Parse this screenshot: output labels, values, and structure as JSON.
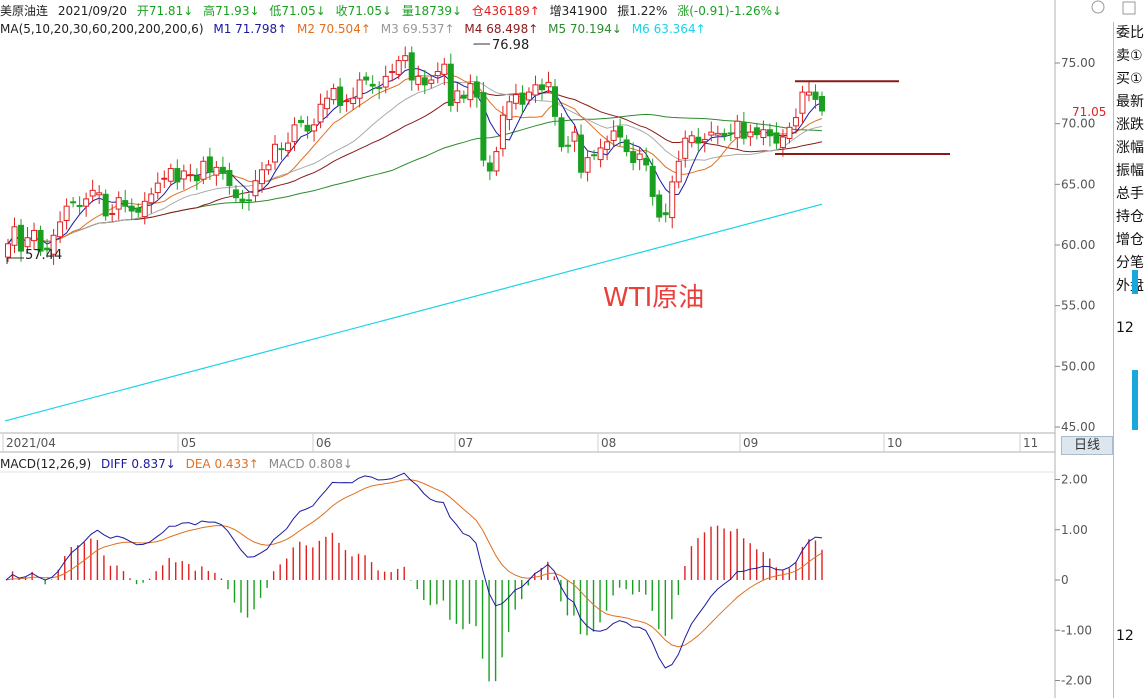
{
  "header": {
    "symbol": "美原油连",
    "date": "2021/09/20",
    "open": "开71.81↓",
    "high": "高71.93↓",
    "low": "低71.05↓",
    "close": "收71.05↓",
    "volume": "量18739↓",
    "open_interest": "仓436189↑",
    "increase": "增341900",
    "amplitude": "振1.22%",
    "change": "涨(-0.91)-1.26%↓"
  },
  "ma_line": {
    "label": "MA(5,10,20,30,60,200,200,200,6)",
    "items": [
      {
        "text": "M1 71.798↑",
        "color": "#1a1aa0"
      },
      {
        "text": "M2 70.504↑",
        "color": "#e07020"
      },
      {
        "text": "M3 69.537↑",
        "color": "#999999"
      },
      {
        "text": "M4 68.498↑",
        "color": "#8b1a1a"
      },
      {
        "text": "M5 70.194↓",
        "color": "#2e8b2e"
      },
      {
        "text": "M6 63.364↑",
        "color": "#19d4e6"
      }
    ]
  },
  "macd_line": {
    "label": "MACD(12,26,9)",
    "items": [
      {
        "text": "DIFF 0.837↓",
        "color": "#1a1aa0"
      },
      {
        "text": "DEA 0.433↑",
        "color": "#e07020"
      },
      {
        "text": "MACD 0.808↓",
        "color": "#888888"
      }
    ]
  },
  "annotation": "WTI原油",
  "period_button": "日线",
  "sidebar": {
    "labels": [
      "委比",
      "卖①",
      "买①",
      "最新",
      "涨跌",
      "涨幅",
      "振幅",
      "总手",
      "持仓",
      "增仓",
      "分笔",
      "外盘"
    ],
    "num1": "12",
    "num2": "12"
  },
  "colors": {
    "up": "#e02020",
    "down": "#1aa020",
    "diff": "#1a1aa0",
    "dea": "#e07020",
    "ma200": "#19d4e6",
    "resistance": "#8b1a1a"
  },
  "chart_data": {
    "type": "candlestick",
    "x_labels": [
      "2021/04",
      "05",
      "06",
      "07",
      "08",
      "09",
      "10",
      "11"
    ],
    "y_ticks": [
      45.0,
      50.0,
      55.0,
      60.0,
      65.0,
      70.0,
      75.0
    ],
    "ylim": [
      45,
      80
    ],
    "last_price": "71.05",
    "high_label": "76.98",
    "low_label": "57.44",
    "closes": [
      60.1,
      61.5,
      59.5,
      60.6,
      61.2,
      59.5,
      59.6,
      60.8,
      61.9,
      63.2,
      63.5,
      63.2,
      63.8,
      64.5,
      64.3,
      62.4,
      62.6,
      63.9,
      63.2,
      62.8,
      62.7,
      63.6,
      64.2,
      65.1,
      65.5,
      66.3,
      65.2,
      66.1,
      65.8,
      65.3,
      66.9,
      66.0,
      66.4,
      65.9,
      64.9,
      63.9,
      63.6,
      63.7,
      65.3,
      66.2,
      66.6,
      68.3,
      67.9,
      68.4,
      69.9,
      70.1,
      69.4,
      69.9,
      71.6,
      72.1,
      72.9,
      71.5,
      71.9,
      72.1,
      73.6,
      73.6,
      73.1,
      72.9,
      73.9,
      74.3,
      75.2,
      75.6,
      73.6,
      73.9,
      73.2,
      73.6,
      74.3,
      74.9,
      71.5,
      72.7,
      72.1,
      73.3,
      72.2,
      67.0,
      66.1,
      67.7,
      70.7,
      71.8,
      72.4,
      71.6,
      72.6,
      73.2,
      72.8,
      73.4,
      70.6,
      68.1,
      68.2,
      69.3,
      66.0,
      67.2,
      67.4,
      68.0,
      68.5,
      69.4,
      68.9,
      67.7,
      66.8,
      67.5,
      66.6,
      64.0,
      62.3,
      62.5,
      65.2,
      66.9,
      68.8,
      69.0,
      68.4,
      68.7,
      69.3,
      69.2,
      69.0,
      69.2,
      70.2,
      68.8,
      69.3,
      69.1,
      69.5,
      69.0,
      68.4,
      68.9,
      69.7,
      70.5,
      72.6,
      72.6,
      72.0,
      71.05
    ],
    "ma200_start": 45.5,
    "ma200_end": 63.36,
    "macd": {
      "diff_last": 0.837,
      "dea_last": 0.433,
      "macd_last": 0.808,
      "ylim": [
        -2.1,
        2.2
      ],
      "y_ticks": [
        2.0,
        1.0,
        0,
        -1.0,
        -2.0
      ]
    },
    "resistance_levels": [
      73.5,
      67.5
    ]
  }
}
